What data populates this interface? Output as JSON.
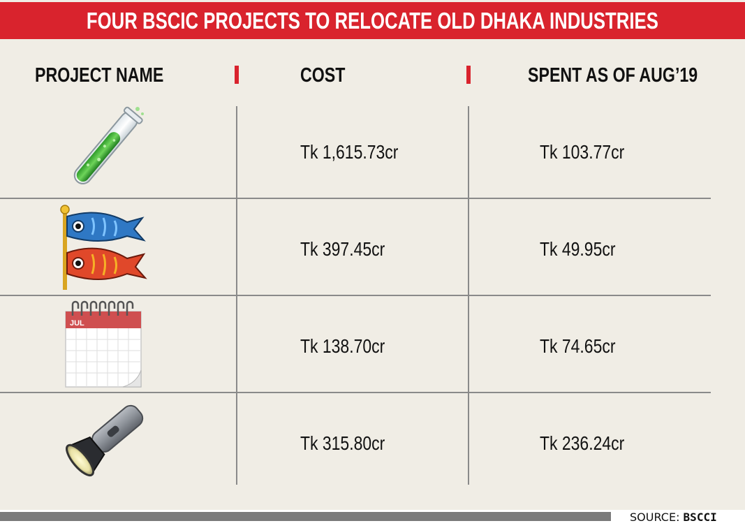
{
  "title": "FOUR BSCIC PROJECTS TO RELOCATE OLD DHAKA INDUSTRIES",
  "source": {
    "label": "SOURCE:",
    "value": "BSCCI"
  },
  "colors": {
    "accent": "#d9232d",
    "background": "#f0ede5",
    "rule": "#8a8a8a",
    "footer_bar": "#7a7a7a"
  },
  "chart_data": {
    "type": "table",
    "columns": [
      "PROJECT NAME",
      "COST",
      "SPENT AS OF AUG’19"
    ],
    "rows": [
      {
        "icon": "test-tube-icon",
        "cost": "Tk 1,615.73cr",
        "spent": "Tk 103.77cr"
      },
      {
        "icon": "carp-streamer-icon",
        "cost": "Tk 397.45cr",
        "spent": "Tk 49.95cr"
      },
      {
        "icon": "calendar-icon",
        "icon_text": "JUL",
        "cost": "Tk 138.70cr",
        "spent": "Tk 74.65cr"
      },
      {
        "icon": "flashlight-icon",
        "cost": "Tk 315.80cr",
        "spent": "Tk 236.24cr"
      }
    ],
    "cost_values_tk_crore": [
      1615.73,
      397.45,
      138.7,
      315.8
    ],
    "spent_values_tk_crore": [
      103.77,
      49.95,
      74.65,
      236.24
    ]
  }
}
